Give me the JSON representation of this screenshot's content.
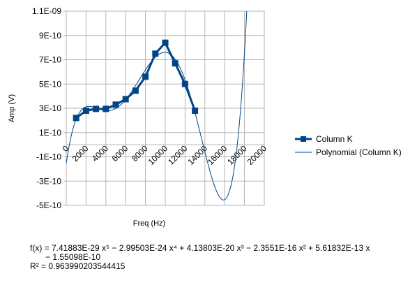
{
  "chart_data": {
    "type": "scatter",
    "xlabel": "Freq (Hz)",
    "ylabel": "Amp (V)",
    "xlim": [
      0,
      20000
    ],
    "ylim": [
      -5e-10,
      1.1e-09
    ],
    "x_ticks": [
      "0",
      "2000",
      "4000",
      "6000",
      "8000",
      "10000",
      "12000",
      "14000",
      "16000",
      "18000",
      "20000"
    ],
    "y_ticks": [
      "1.1E-09",
      "9E-10",
      "7E-10",
      "5E-10",
      "3E-10",
      "1E-10",
      "-1E-10",
      "-3E-10",
      "-5E-10"
    ],
    "grid": true,
    "legend_position": "right",
    "series": [
      {
        "name": "Column K",
        "color": "#004586",
        "marker": "square",
        "x": [
          1000,
          2000,
          3000,
          4000,
          5000,
          6000,
          7000,
          8000,
          9000,
          10000,
          11000,
          12000,
          13000
        ],
        "y": [
          2.2e-10,
          2.8e-10,
          2.95e-10,
          2.95e-10,
          3.3e-10,
          3.75e-10,
          4.45e-10,
          5.6e-10,
          7.5e-10,
          8.4e-10,
          6.7e-10,
          5e-10,
          2.8e-10
        ]
      },
      {
        "name": "Polynomial (Column K)",
        "color": "#004586",
        "type": "trendline",
        "coefficients": [
          -1.55098e-10,
          5.61832e-13,
          -2.3551e-16,
          4.13803e-20,
          -2.99503e-24,
          7.41883e-29
        ]
      }
    ],
    "equation_line1": "f(x) = 7.41883E-29 x⁵ − 2.99503E-24 x⁴ + 4.13803E-20 x³ − 2.3551E-16 x² + 5.61832E-13 x",
    "equation_line2": "− 1.55098E-10",
    "r_squared": "R² = 0.963990203544415"
  }
}
